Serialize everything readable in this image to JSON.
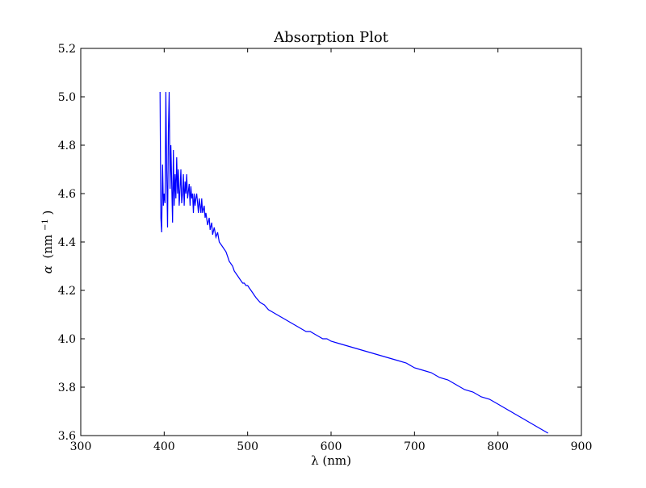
{
  "chart_data": {
    "type": "line",
    "title": "Absorption Plot",
    "xlabel": "λ (nm)",
    "ylabel_symbol": "α",
    "ylabel_unit_base": "(nm",
    "ylabel_unit_exp": "−1",
    "ylabel_unit_close": ")",
    "xlim": [
      300,
      900
    ],
    "ylim": [
      3.6,
      5.2
    ],
    "x_ticks": [
      300,
      400,
      500,
      600,
      700,
      800,
      900
    ],
    "y_ticks": [
      3.6,
      3.8,
      4.0,
      4.2,
      4.4,
      4.6,
      4.8,
      5.0,
      5.2
    ],
    "x_tick_labels": [
      "300",
      "400",
      "500",
      "600",
      "700",
      "800",
      "900"
    ],
    "y_tick_labels": [
      "3.6",
      "3.8",
      "4.0",
      "4.2",
      "4.4",
      "4.6",
      "4.8",
      "5.0",
      "5.2"
    ],
    "grid": false,
    "color": "#0000ff",
    "series": [
      {
        "points": [
          [
            395,
            5.02
          ],
          [
            396,
            4.5
          ],
          [
            397,
            4.44
          ],
          [
            398,
            4.72
          ],
          [
            399,
            4.55
          ],
          [
            400,
            4.6
          ],
          [
            401,
            4.56
          ],
          [
            402,
            5.02
          ],
          [
            403,
            4.7
          ],
          [
            404,
            4.46
          ],
          [
            405,
            4.85
          ],
          [
            406,
            5.02
          ],
          [
            407,
            4.62
          ],
          [
            408,
            4.8
          ],
          [
            409,
            4.65
          ],
          [
            410,
            4.48
          ],
          [
            411,
            4.78
          ],
          [
            412,
            4.55
          ],
          [
            413,
            4.68
          ],
          [
            414,
            4.58
          ],
          [
            415,
            4.75
          ],
          [
            416,
            4.6
          ],
          [
            417,
            4.7
          ],
          [
            418,
            4.55
          ],
          [
            419,
            4.62
          ],
          [
            420,
            4.7
          ],
          [
            421,
            4.56
          ],
          [
            422,
            4.6
          ],
          [
            423,
            4.68
          ],
          [
            424,
            4.55
          ],
          [
            425,
            4.65
          ],
          [
            426,
            4.6
          ],
          [
            427,
            4.68
          ],
          [
            428,
            4.58
          ],
          [
            430,
            4.64
          ],
          [
            431,
            4.55
          ],
          [
            432,
            4.63
          ],
          [
            433,
            4.58
          ],
          [
            434,
            4.6
          ],
          [
            435,
            4.52
          ],
          [
            436,
            4.6
          ],
          [
            437,
            4.55
          ],
          [
            438,
            4.58
          ],
          [
            439,
            4.6
          ],
          [
            440,
            4.56
          ],
          [
            441,
            4.52
          ],
          [
            442,
            4.58
          ],
          [
            443,
            4.55
          ],
          [
            444,
            4.52
          ],
          [
            445,
            4.58
          ],
          [
            446,
            4.52
          ],
          [
            448,
            4.55
          ],
          [
            449,
            4.5
          ],
          [
            450,
            4.52
          ],
          [
            452,
            4.47
          ],
          [
            454,
            4.5
          ],
          [
            455,
            4.45
          ],
          [
            457,
            4.48
          ],
          [
            458,
            4.43
          ],
          [
            460,
            4.46
          ],
          [
            462,
            4.42
          ],
          [
            464,
            4.44
          ],
          [
            466,
            4.4
          ],
          [
            468,
            4.39
          ],
          [
            470,
            4.38
          ],
          [
            472,
            4.37
          ],
          [
            474,
            4.36
          ],
          [
            476,
            4.34
          ],
          [
            478,
            4.32
          ],
          [
            480,
            4.31
          ],
          [
            482,
            4.3
          ],
          [
            484,
            4.28
          ],
          [
            486,
            4.27
          ],
          [
            488,
            4.26
          ],
          [
            490,
            4.25
          ],
          [
            492,
            4.24
          ],
          [
            494,
            4.23
          ],
          [
            496,
            4.23
          ],
          [
            498,
            4.22
          ],
          [
            500,
            4.22
          ],
          [
            502,
            4.21
          ],
          [
            504,
            4.2
          ],
          [
            506,
            4.19
          ],
          [
            508,
            4.18
          ],
          [
            510,
            4.17
          ],
          [
            515,
            4.15
          ],
          [
            520,
            4.14
          ],
          [
            525,
            4.12
          ],
          [
            530,
            4.11
          ],
          [
            535,
            4.1
          ],
          [
            540,
            4.09
          ],
          [
            545,
            4.08
          ],
          [
            550,
            4.07
          ],
          [
            555,
            4.06
          ],
          [
            560,
            4.05
          ],
          [
            565,
            4.04
          ],
          [
            570,
            4.03
          ],
          [
            575,
            4.03
          ],
          [
            580,
            4.02
          ],
          [
            585,
            4.01
          ],
          [
            590,
            4.0
          ],
          [
            595,
            4.0
          ],
          [
            600,
            3.99
          ],
          [
            610,
            3.98
          ],
          [
            620,
            3.97
          ],
          [
            630,
            3.96
          ],
          [
            640,
            3.95
          ],
          [
            650,
            3.94
          ],
          [
            660,
            3.93
          ],
          [
            670,
            3.92
          ],
          [
            680,
            3.91
          ],
          [
            690,
            3.9
          ],
          [
            700,
            3.88
          ],
          [
            710,
            3.87
          ],
          [
            720,
            3.86
          ],
          [
            730,
            3.84
          ],
          [
            740,
            3.83
          ],
          [
            750,
            3.81
          ],
          [
            760,
            3.79
          ],
          [
            770,
            3.78
          ],
          [
            780,
            3.76
          ],
          [
            790,
            3.75
          ],
          [
            800,
            3.73
          ],
          [
            810,
            3.71
          ],
          [
            820,
            3.69
          ],
          [
            830,
            3.67
          ],
          [
            840,
            3.65
          ],
          [
            850,
            3.63
          ],
          [
            855,
            3.62
          ],
          [
            860,
            3.61
          ]
        ]
      }
    ]
  }
}
